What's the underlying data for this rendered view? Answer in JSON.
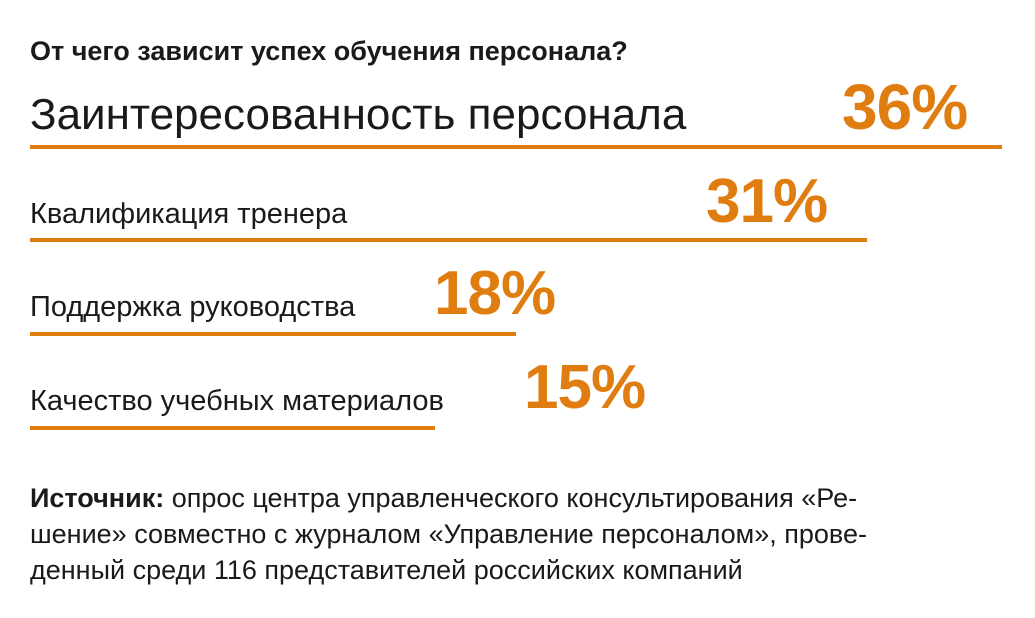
{
  "title": "От чего зависит успех обучения персонала?",
  "chart_data": {
    "type": "bar",
    "orientation": "horizontal",
    "categories": [
      "Заинтересованность персонала",
      "Квалификация тренера",
      "Поддержка руководства",
      "Качество учебных материалов"
    ],
    "values": [
      36,
      31,
      18,
      15
    ],
    "value_labels": [
      "36%",
      "31%",
      "18%",
      "15%"
    ],
    "unit": "%",
    "xlim": [
      0,
      36
    ],
    "grid": false,
    "legend": "none"
  },
  "source": {
    "label": "Источник:",
    "lines": [
      "опрос центра управленческого консультирования «Ре-",
      "шение» совместно с журналом «Управление персоналом», прове-",
      "денный среди 116 представителей российских компаний"
    ]
  },
  "colors": {
    "accent": "#e07d10",
    "text": "#1a1a1a"
  }
}
